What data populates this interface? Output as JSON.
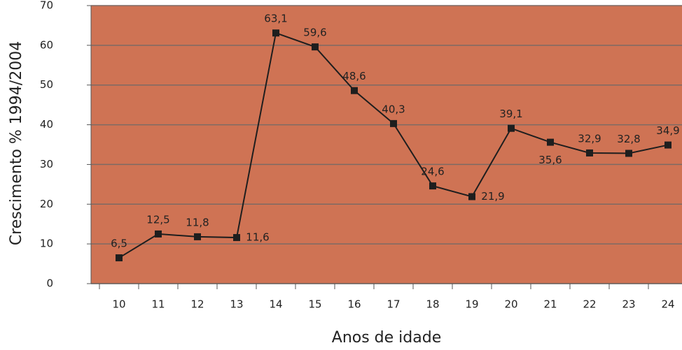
{
  "chart_data": {
    "type": "line",
    "x_label": "Anos de idade",
    "y_label": "Crescimento % 1994/2004",
    "categories": [
      "10",
      "11",
      "12",
      "13",
      "14",
      "15",
      "16",
      "17",
      "18",
      "19",
      "20",
      "21",
      "22",
      "23",
      "24"
    ],
    "values": [
      6.5,
      12.5,
      11.8,
      11.6,
      63.1,
      59.6,
      48.6,
      40.3,
      24.6,
      21.9,
      39.1,
      35.6,
      32.9,
      32.8,
      34.9
    ],
    "value_labels": [
      "6,5",
      "12,5",
      "11,8",
      "11,6",
      "63,1",
      "59,6",
      "48,6",
      "40,3",
      "24,6",
      "21,9",
      "39,1",
      "35,6",
      "32,9",
      "32,8",
      "34,9"
    ],
    "color": "#1e1e1e",
    "background": "#cf7354",
    "ylim": [
      0,
      70
    ],
    "yticks": [
      0,
      10,
      20,
      30,
      40,
      50,
      60,
      70
    ],
    "grid": true
  }
}
